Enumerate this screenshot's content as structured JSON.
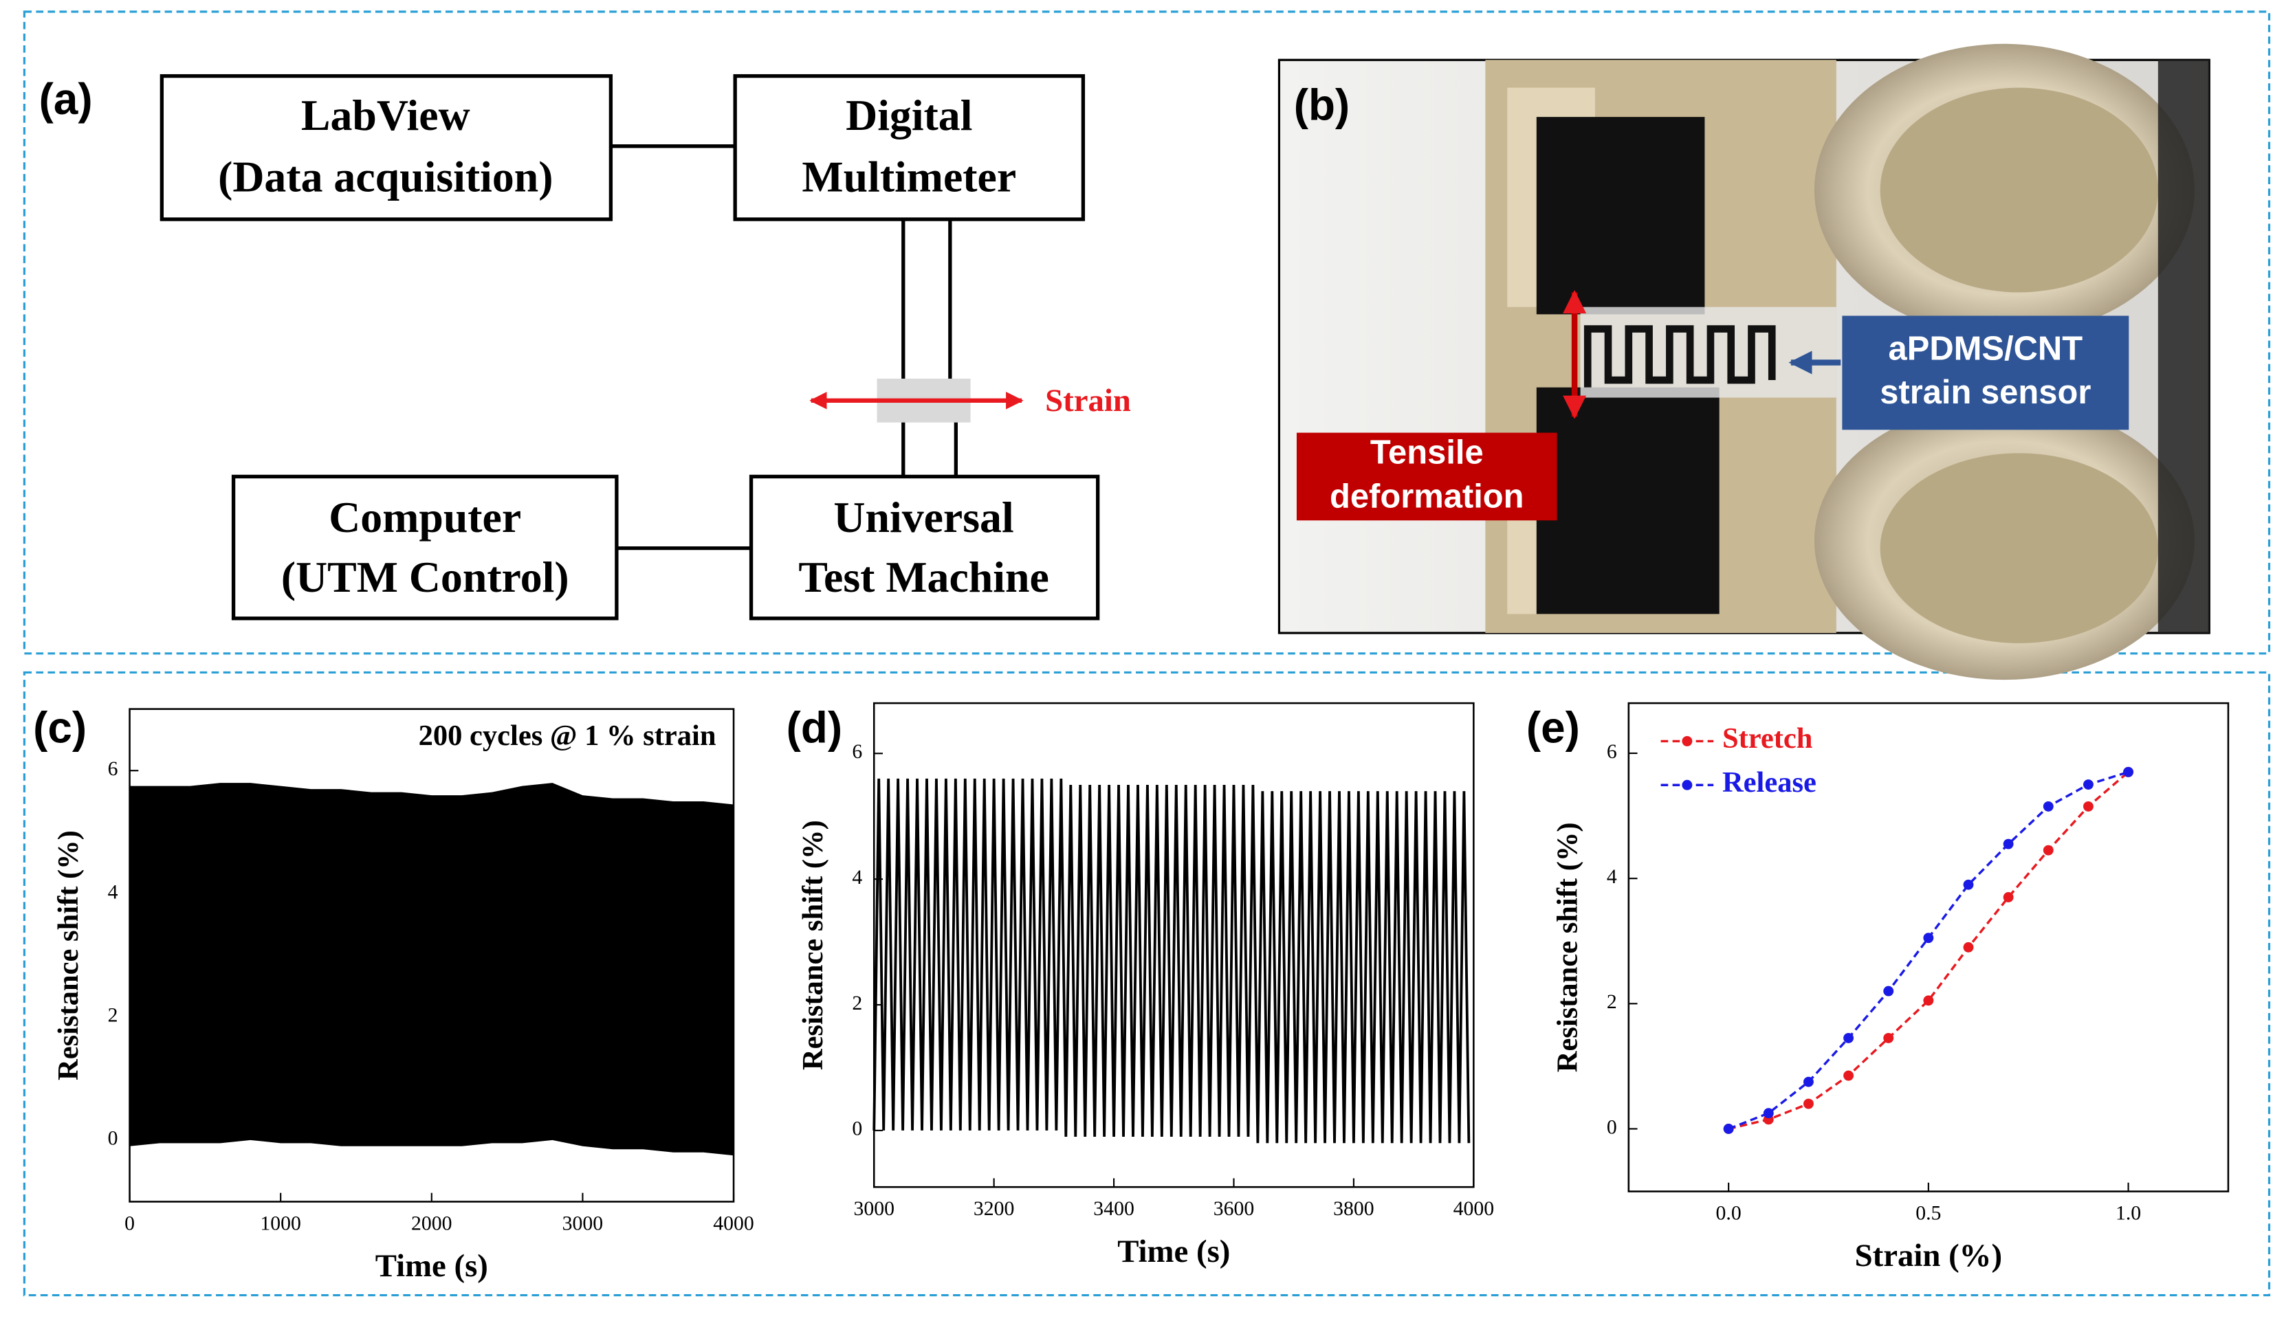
{
  "diagram": {
    "label": "(a)",
    "nodes": [
      {
        "lines": [
          "LabView",
          "(Data acquisition)"
        ]
      },
      {
        "lines": [
          "Digital",
          "Multimeter"
        ]
      },
      {
        "lines": [
          "Computer",
          "(UTM Control)"
        ]
      },
      {
        "lines": [
          "Universal",
          "Test Machine"
        ]
      }
    ],
    "arrow_label": "Strain"
  },
  "photo": {
    "label": "(b)",
    "callouts": [
      {
        "lines": [
          "aPDMS/CNT",
          "strain sensor"
        ]
      },
      {
        "lines": [
          "Tensile",
          "deformation"
        ]
      }
    ]
  },
  "chart_data": [
    {
      "type": "envelope",
      "label": "(c)",
      "annotation": "200 cycles @ 1 % strain",
      "x_label": "Time (s)",
      "y_label": "Resistance shift (%)",
      "color": "#000000",
      "x": [
        0,
        200,
        400,
        600,
        800,
        1000,
        1200,
        1400,
        1600,
        1800,
        2000,
        2200,
        2400,
        2600,
        2800,
        3000,
        3200,
        3400,
        3600,
        3800,
        4000
      ],
      "upper": [
        5.75,
        5.75,
        5.75,
        5.8,
        5.8,
        5.75,
        5.7,
        5.7,
        5.65,
        5.65,
        5.6,
        5.6,
        5.65,
        5.75,
        5.8,
        5.6,
        5.55,
        5.55,
        5.5,
        5.5,
        5.45
      ],
      "lower": [
        -0.1,
        -0.05,
        -0.05,
        -0.05,
        0.0,
        -0.05,
        -0.05,
        -0.1,
        -0.1,
        -0.1,
        -0.1,
        -0.1,
        -0.05,
        -0.05,
        0.0,
        -0.1,
        -0.15,
        -0.15,
        -0.2,
        -0.2,
        -0.25
      ],
      "xlim": [
        0,
        4000
      ],
      "ylim": [
        -1,
        7
      ],
      "xticks": [
        0,
        1000,
        2000,
        3000,
        4000
      ],
      "yticks": [
        0,
        2,
        4,
        6
      ]
    },
    {
      "type": "line",
      "label": "(d)",
      "x_label": "Time (s)",
      "y_label": "Resistance shift (%)",
      "color": "#000000",
      "x": [
        3000,
        3008,
        3016,
        3024,
        3032,
        3040,
        3048,
        3056,
        3064,
        3072,
        3080,
        3088,
        3096,
        3104,
        3112,
        3120,
        3128,
        3136,
        3144,
        3152,
        3160,
        3168,
        3176,
        3184,
        3192,
        3200,
        3208,
        3216,
        3224,
        3232,
        3240,
        3248,
        3256,
        3264,
        3272,
        3280,
        3288,
        3296,
        3304,
        3312,
        3320,
        3328,
        3336,
        3344,
        3352,
        3360,
        3368,
        3376,
        3384,
        3392,
        3400,
        3408,
        3416,
        3424,
        3432,
        3440,
        3448,
        3456,
        3464,
        3472,
        3480,
        3488,
        3496,
        3504,
        3512,
        3520,
        3528,
        3536,
        3544,
        3552,
        3560,
        3568,
        3576,
        3584,
        3592,
        3600,
        3608,
        3616,
        3624,
        3632,
        3640,
        3648,
        3656,
        3664,
        3672,
        3680,
        3688,
        3696,
        3704,
        3712,
        3720,
        3728,
        3736,
        3744,
        3752,
        3760,
        3768,
        3776,
        3784,
        3792,
        3800,
        3808,
        3816,
        3824,
        3832,
        3840,
        3848,
        3856,
        3864,
        3872,
        3880,
        3888,
        3896,
        3904,
        3912,
        3920,
        3928,
        3936,
        3944,
        3952,
        3960,
        3968,
        3976,
        3984,
        3992
      ],
      "values": [
        0,
        5.6,
        0,
        5.6,
        0,
        5.6,
        0,
        5.6,
        0,
        5.6,
        0,
        5.6,
        0,
        5.6,
        0,
        5.6,
        0,
        5.6,
        0,
        5.6,
        0,
        5.6,
        0,
        5.6,
        0,
        5.6,
        0,
        5.6,
        0,
        5.6,
        0,
        5.6,
        0,
        5.6,
        0,
        5.6,
        0,
        5.6,
        0,
        5.6,
        -0.1,
        5.5,
        -0.1,
        5.5,
        -0.1,
        5.5,
        -0.1,
        5.5,
        -0.1,
        5.5,
        -0.1,
        5.5,
        -0.1,
        5.5,
        -0.1,
        5.5,
        -0.1,
        5.5,
        -0.1,
        5.5,
        -0.1,
        5.5,
        -0.1,
        5.5,
        -0.1,
        5.5,
        -0.1,
        5.5,
        -0.1,
        5.5,
        -0.1,
        5.5,
        -0.1,
        5.5,
        -0.1,
        5.5,
        -0.1,
        5.5,
        -0.1,
        5.5,
        -0.2,
        5.4,
        -0.2,
        5.4,
        -0.2,
        5.4,
        -0.2,
        5.4,
        -0.2,
        5.4,
        -0.2,
        5.4,
        -0.2,
        5.4,
        -0.2,
        5.4,
        -0.2,
        5.4,
        -0.2,
        5.4,
        -0.2,
        5.4,
        -0.2,
        5.4,
        -0.2,
        5.4,
        -0.2,
        5.4,
        -0.2,
        5.4,
        -0.2,
        5.4,
        -0.2,
        5.4,
        -0.2,
        5.4,
        -0.2,
        5.4,
        -0.2,
        5.4,
        -0.2,
        5.4,
        -0.2,
        5.4,
        -0.2
      ],
      "xlim": [
        3000,
        4000
      ],
      "ylim": [
        -0.9,
        6.8
      ],
      "xticks": [
        3000,
        3200,
        3400,
        3600,
        3800,
        4000
      ],
      "yticks": [
        0,
        2,
        4,
        6
      ]
    },
    {
      "type": "line",
      "label": "(e)",
      "x_label": "Strain (%)",
      "y_label": "Resistance shift (%)",
      "markers": true,
      "dashed": true,
      "legend": "upper left",
      "x": [
        0,
        0.1,
        0.2,
        0.3,
        0.4,
        0.5,
        0.6,
        0.7,
        0.8,
        0.9,
        1.0
      ],
      "series": [
        {
          "name": "Stretch",
          "color": "#e8191f",
          "values": [
            0,
            0.15,
            0.4,
            0.85,
            1.45,
            2.05,
            2.9,
            3.7,
            4.45,
            5.15,
            5.7
          ]
        },
        {
          "name": "Release",
          "color": "#1a1ae6",
          "values": [
            0,
            0.25,
            0.75,
            1.45,
            2.2,
            3.05,
            3.9,
            4.55,
            5.15,
            5.5,
            5.7
          ]
        }
      ],
      "xlim": [
        -0.25,
        1.25
      ],
      "ylim": [
        -1,
        6.8
      ],
      "xticks": [
        {
          "value": 0,
          "label": "0.0"
        },
        0.5,
        {
          "value": 1,
          "label": "1.0"
        }
      ],
      "yticks": [
        0,
        2,
        4,
        6
      ]
    }
  ]
}
